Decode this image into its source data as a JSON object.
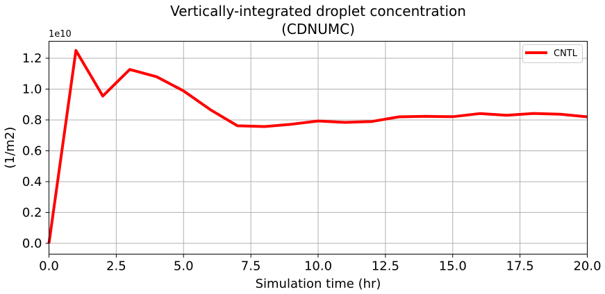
{
  "chart_data": {
    "type": "line",
    "title": "Vertically-integrated droplet concentration",
    "subtitle": "(CDNUMC)",
    "xlabel": "Simulation time (hr)",
    "ylabel": "(1/m2)",
    "y_offset_label": "1e10",
    "xlim": [
      0,
      20
    ],
    "ylim": [
      -0.07,
      1.31
    ],
    "x_ticks": [
      0,
      2.5,
      5,
      7.5,
      10,
      12.5,
      15,
      17.5,
      20
    ],
    "x_tick_labels": [
      "0.0",
      "2.5",
      "5.0",
      "7.5",
      "10.0",
      "12.5",
      "15.0",
      "17.5",
      "20.0"
    ],
    "y_ticks": [
      0,
      0.2,
      0.4,
      0.6,
      0.8,
      1.0,
      1.2
    ],
    "y_tick_labels": [
      "0.0",
      "0.2",
      "0.4",
      "0.6",
      "0.8",
      "1.0",
      "1.2"
    ],
    "grid": true,
    "legend_position": "top-right",
    "series": [
      {
        "name": "CNTL",
        "color": "#ff0000",
        "x": [
          0,
          1,
          2,
          3,
          4,
          5,
          6,
          7,
          8,
          9,
          10,
          11,
          12,
          13,
          14,
          15,
          16,
          17,
          18,
          19,
          20
        ],
        "values": [
          0.0,
          1.25,
          0.955,
          1.127,
          1.08,
          0.988,
          0.866,
          0.762,
          0.757,
          0.772,
          0.793,
          0.784,
          0.79,
          0.82,
          0.823,
          0.821,
          0.841,
          0.83,
          0.842,
          0.837,
          0.82
        ]
      }
    ]
  }
}
